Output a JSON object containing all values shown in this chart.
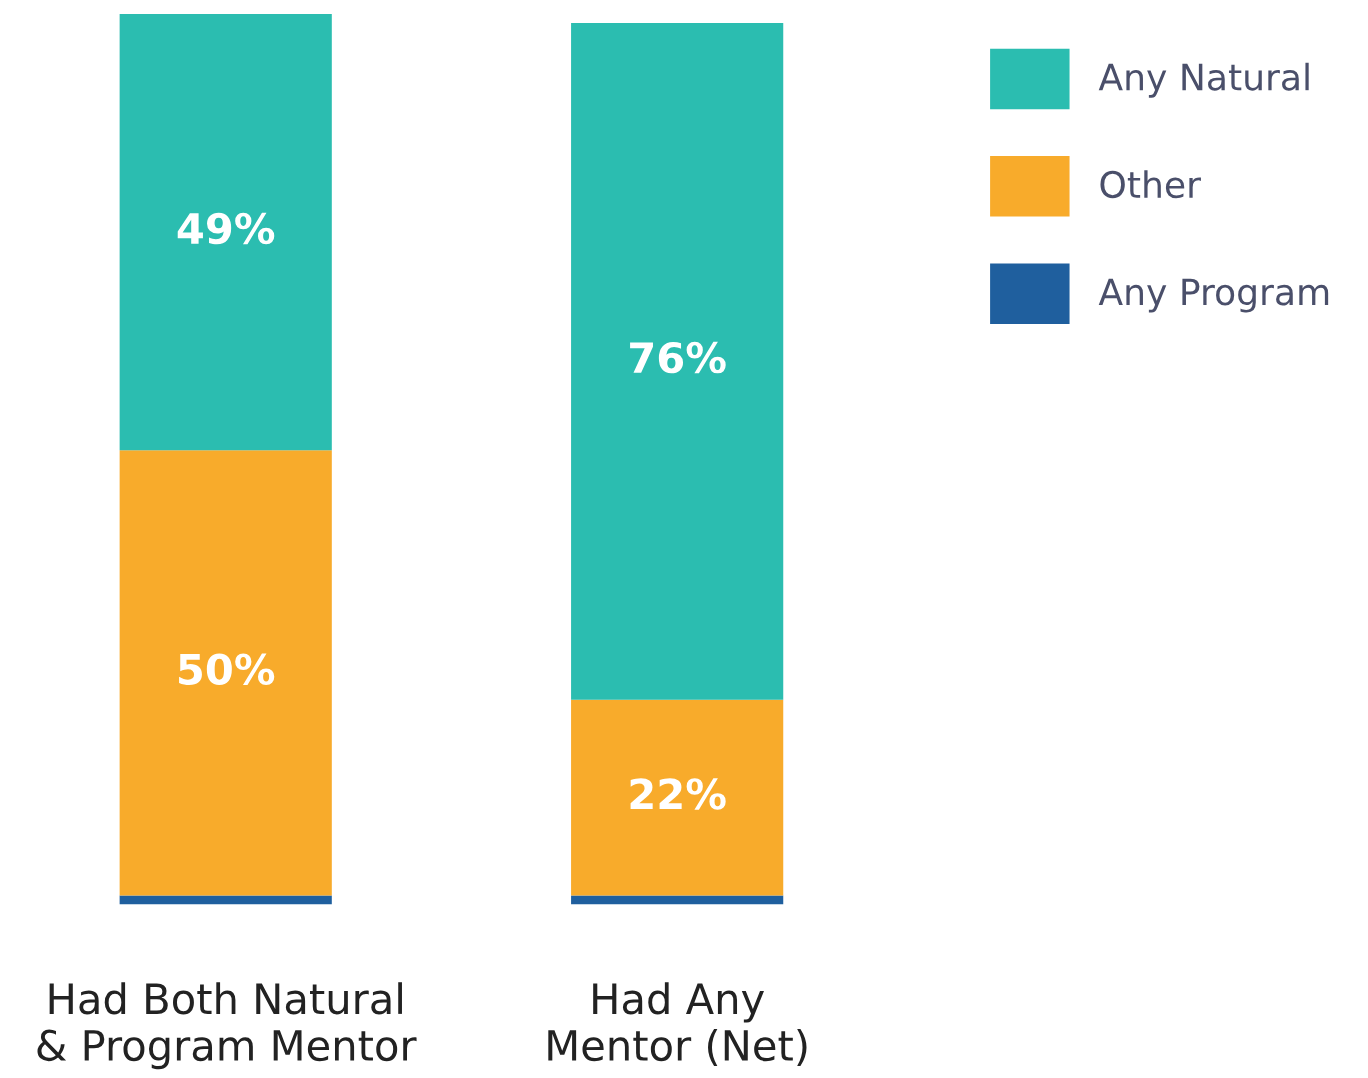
{
  "chart_data": {
    "type": "bar",
    "stacked": true,
    "categories": [
      "Had Both Natural\n& Program Mentor",
      "Had Any\nMentor (Net)"
    ],
    "series": [
      {
        "name": "Any Program",
        "color": "#1f5f9e",
        "values": [
          1,
          1
        ],
        "value_labels": [
          null,
          null
        ]
      },
      {
        "name": "Other",
        "color": "#f8ab2b",
        "values": [
          50,
          22
        ],
        "value_labels": [
          "50%",
          "22%"
        ]
      },
      {
        "name": "Any Natural",
        "color": "#2bbdb0",
        "values": [
          49,
          76
        ],
        "value_labels": [
          "49%",
          "76%"
        ]
      }
    ],
    "legend": "top right"
  }
}
